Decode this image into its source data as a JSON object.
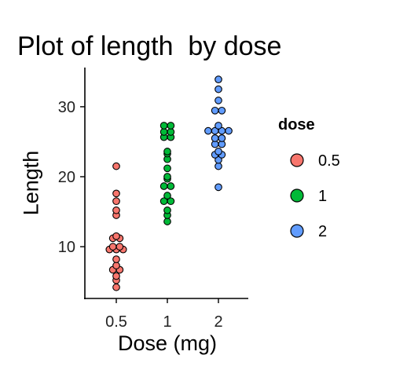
{
  "chart_data": {
    "type": "scatter",
    "subtype": "dotplot",
    "title": "Plot of length  by dose",
    "xlabel": "Dose (mg)",
    "ylabel": "Length",
    "categories": [
      "0.5",
      "1",
      "2"
    ],
    "ylim": [
      2.6,
      35.6
    ],
    "yticks": [
      10,
      20,
      30
    ],
    "grid": false,
    "legend": {
      "title": "dose",
      "placement": "right",
      "entries": [
        "0.5",
        "1",
        "2"
      ]
    },
    "series": [
      {
        "name": "0.5",
        "color": "#F8766D",
        "values": [
          4.2,
          5.2,
          5.8,
          6.4,
          7.0,
          7.3,
          8.2,
          9.4,
          9.7,
          9.7,
          10.0,
          10.0,
          11.2,
          11.2,
          11.5,
          14.5,
          15.2,
          16.5,
          17.6,
          21.5
        ]
      },
      {
        "name": "1",
        "color": "#00BA38",
        "values": [
          13.6,
          14.5,
          15.2,
          16.5,
          16.5,
          17.3,
          18.5,
          18.8,
          19.7,
          20.0,
          21.2,
          22.5,
          23.3,
          23.6,
          25.5,
          25.8,
          26.4,
          26.4,
          27.3,
          27.3
        ]
      },
      {
        "name": "2",
        "color": "#619CFF",
        "values": [
          18.5,
          21.5,
          22.4,
          23.0,
          23.3,
          23.6,
          24.5,
          24.8,
          25.5,
          25.5,
          26.4,
          26.4,
          26.7,
          26.7,
          27.3,
          29.4,
          29.5,
          30.9,
          32.5,
          33.9
        ]
      }
    ]
  }
}
